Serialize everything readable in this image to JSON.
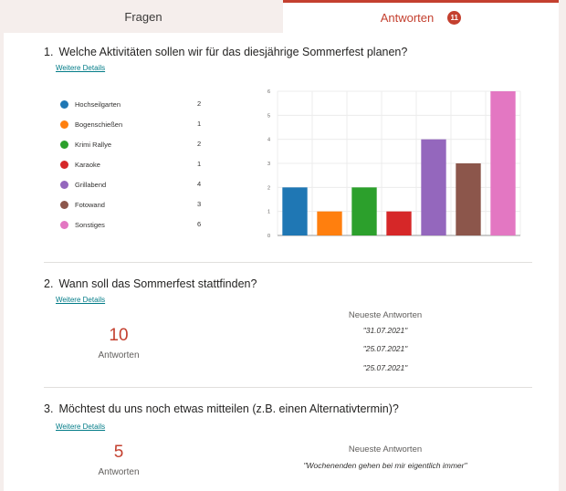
{
  "tabs": {
    "fragen": "Fragen",
    "antworten": "Antworten",
    "antworten_badge": "11"
  },
  "q1": {
    "number": "1.",
    "title": "Welche Aktivitäten sollen wir für das diesjährige Sommerfest planen?",
    "details_link": "Weitere Details",
    "legend": [
      {
        "label": "Hochseilgarten",
        "count": "2",
        "color": "#1f77b4"
      },
      {
        "label": "Bogenschießen",
        "count": "1",
        "color": "#ff7f0e"
      },
      {
        "label": "Krimi Rallye",
        "count": "2",
        "color": "#2ca02c"
      },
      {
        "label": "Karaoke",
        "count": "1",
        "color": "#d62728"
      },
      {
        "label": "Grillabend",
        "count": "4",
        "color": "#9467bd"
      },
      {
        "label": "Fotowand",
        "count": "3",
        "color": "#8c564b"
      },
      {
        "label": "Sonstiges",
        "count": "6",
        "color": "#e377c2"
      }
    ]
  },
  "chart_data": {
    "type": "bar",
    "categories": [
      "Hochseilgarten",
      "Bogenschießen",
      "Krimi Rallye",
      "Karaoke",
      "Grillabend",
      "Fotowand",
      "Sonstiges"
    ],
    "values": [
      2,
      1,
      2,
      1,
      4,
      3,
      6
    ],
    "colors": [
      "#1f77b4",
      "#ff7f0e",
      "#2ca02c",
      "#d62728",
      "#9467bd",
      "#8c564b",
      "#e377c2"
    ],
    "ylim": [
      0,
      6
    ],
    "yticks": [
      "0",
      "1",
      "2",
      "3",
      "4",
      "5",
      "6"
    ],
    "grid": true,
    "xlabel": "",
    "ylabel": "",
    "title": ""
  },
  "q2": {
    "number": "2.",
    "title": "Wann soll das Sommerfest stattfinden?",
    "details_link": "Weitere Details",
    "count": "10",
    "count_label": "Antworten",
    "recent_heading": "Neueste Antworten",
    "recent": [
      "\"31.07.2021\"",
      "\"25.07.2021\"",
      "\"25.07.2021\""
    ]
  },
  "q3": {
    "number": "3.",
    "title": "Möchtest du uns noch etwas mitteilen (z.B. einen Alternativtermin)?",
    "details_link": "Weitere Details",
    "count": "5",
    "count_label": "Antworten",
    "recent_heading": "Neueste Antworten",
    "recent": [
      "\"Wochenenden gehen bei mir eigentlich immer\""
    ]
  }
}
